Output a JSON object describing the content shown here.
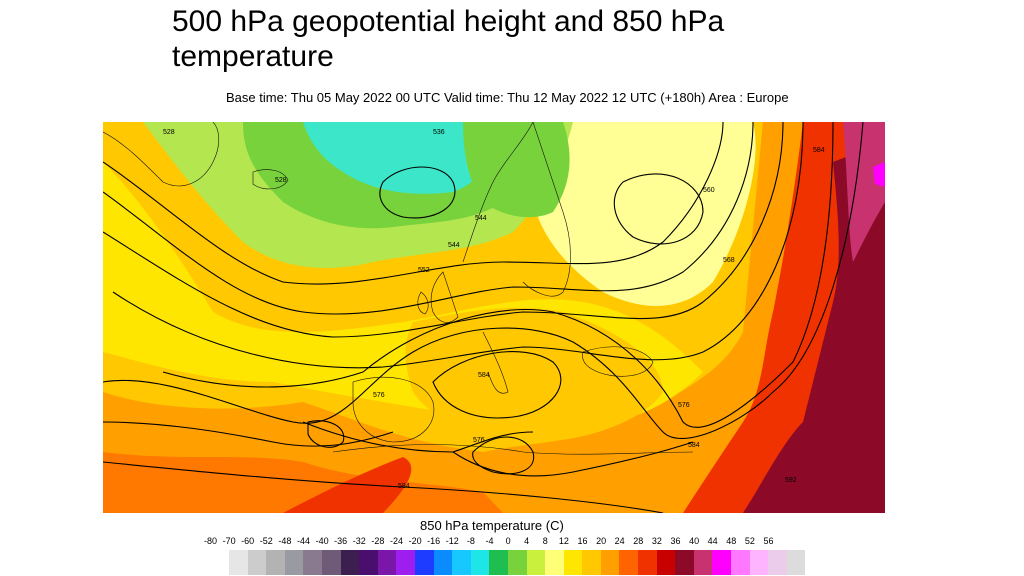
{
  "title": "500 hPa geopotential height and 850 hPa temperature",
  "subtitle": "Base time: Thu 05 May 2022 00 UTC Valid time: Thu 12 May 2022 12 UTC (+180h) Area : Europe",
  "legend": {
    "title": "850 hPa temperature (C)",
    "ticks": [
      "-80",
      "-70",
      "-60",
      "-52",
      "-48",
      "-44",
      "-40",
      "-36",
      "-32",
      "-28",
      "-24",
      "-20",
      "-16",
      "-12",
      "-8",
      "-4",
      "0",
      "4",
      "8",
      "12",
      "16",
      "20",
      "24",
      "28",
      "32",
      "36",
      "40",
      "44",
      "48",
      "52",
      "56"
    ],
    "colors": [
      "#e6e6e6",
      "#cccccc",
      "#b3b3b3",
      "#9a9aa3",
      "#8a7a8f",
      "#6f5a78",
      "#3d1f4f",
      "#4a0f6e",
      "#7a16a8",
      "#9e1ef0",
      "#1e3cff",
      "#0a8cff",
      "#16c8ff",
      "#1ee6e6",
      "#1ebe50",
      "#78d23c",
      "#c8f03c",
      "#ffff78",
      "#ffe600",
      "#ffc800",
      "#ffa000",
      "#ff6400",
      "#f03200",
      "#c80000",
      "#8c0a28",
      "#c8326e",
      "#ff00ff",
      "#ff78ff",
      "#ffb4ff",
      "#ebcdeb",
      "#dcdcdc"
    ]
  },
  "contour_labels": [
    "528",
    "536",
    "544",
    "552",
    "560",
    "568",
    "576",
    "584",
    "592"
  ],
  "map": {
    "colors": {
      "cyan": "#3ce6c8",
      "green": "#78d23c",
      "lightgreen": "#b4e650",
      "paleyellow": "#ffff96",
      "yellow": "#ffe600",
      "gold": "#ffc800",
      "orange": "#ffa000",
      "darkorange": "#ff7800",
      "red": "#f03200",
      "darkred": "#8c0a28",
      "magenta": "#c8326e",
      "pink": "#ff00ff"
    }
  }
}
